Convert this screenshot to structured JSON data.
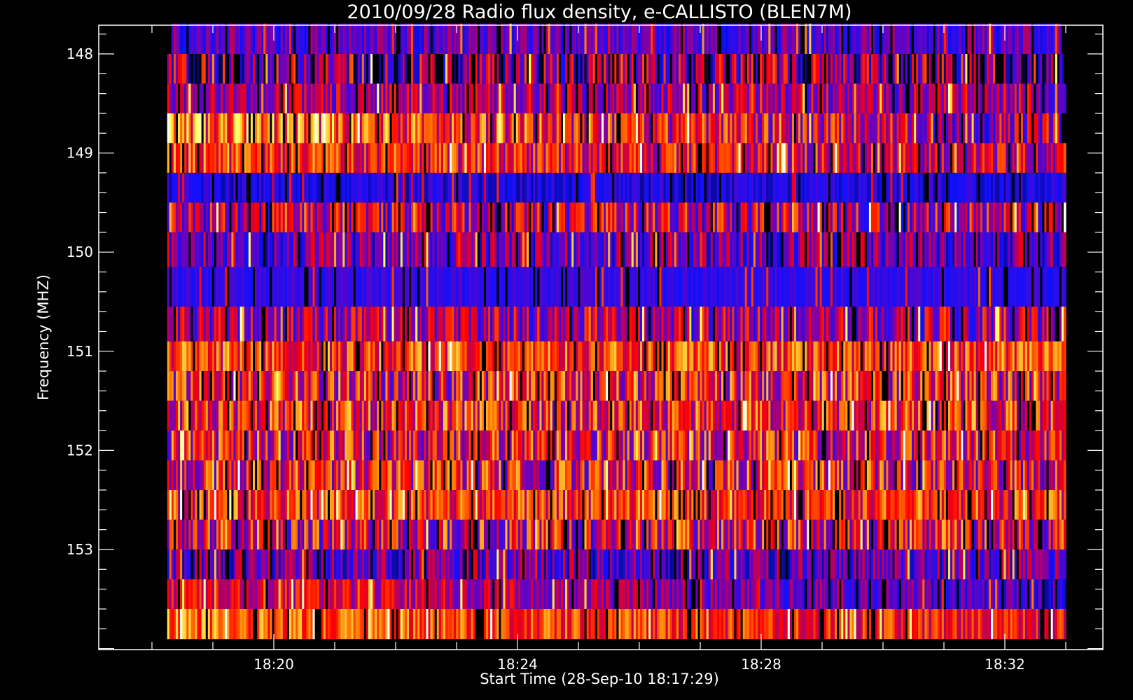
{
  "chart_data": {
    "type": "heatmap",
    "title": "2010/09/28  Radio flux density, e-CALLISTO (BLEN7M)",
    "xlabel": "Start Time (28-Sep-10 18:17:29)",
    "ylabel": "Frequency (MHZ)",
    "x_axis": {
      "unit": "time",
      "range": [
        "18:17:29",
        "18:34:00"
      ],
      "data_extent": [
        "18:18:15",
        "18:33:00"
      ],
      "major_ticks": [
        "18:20",
        "18:24",
        "18:28",
        "18:32"
      ],
      "minor_ticks_per_major": 4
    },
    "y_axis": {
      "unit": "MHz",
      "range": [
        147.7,
        154.1
      ],
      "inverted": true,
      "major_ticks": [
        148,
        149,
        150,
        151,
        152,
        153
      ],
      "minor_ticks_per_major": 5
    },
    "grid": false,
    "colormap": "blue-red-yellow-white",
    "colormap_stops": [
      "#000000",
      "#1010ff",
      "#7a00b0",
      "#ff0000",
      "#ff7a00",
      "#ffff60",
      "#ffffff"
    ],
    "channels": [
      {
        "freq": 147.85,
        "mean": 0.28,
        "var": 0.14,
        "start_col": 0.003,
        "end_col": 0.997
      },
      {
        "freq": 148.15,
        "mean": 0.26,
        "var": 0.35,
        "start_col": 0.0,
        "end_col": 1.0
      },
      {
        "freq": 148.45,
        "mean": 0.38,
        "var": 0.18,
        "start_col": 0.0,
        "end_col": 1.0
      },
      {
        "freq": 148.75,
        "mean": 0.55,
        "var": 0.25,
        "start_col": 0.0,
        "end_col": 1.0,
        "trend": -0.28
      },
      {
        "freq": 149.05,
        "mean": 0.52,
        "var": 0.2,
        "start_col": 0.0,
        "end_col": 1.0,
        "trend": -0.18
      },
      {
        "freq": 149.35,
        "mean": 0.18,
        "var": 0.08,
        "start_col": 0.0,
        "end_col": 1.0
      },
      {
        "freq": 149.65,
        "mean": 0.4,
        "var": 0.26,
        "start_col": 0.0,
        "end_col": 1.0
      },
      {
        "freq": 149.95,
        "mean": 0.3,
        "var": 0.2,
        "start_col": 0.0,
        "end_col": 1.0
      },
      {
        "freq": 150.35,
        "mean": 0.22,
        "var": 0.06,
        "start_col": 0.0,
        "end_col": 1.0
      },
      {
        "freq": 150.75,
        "mean": 0.38,
        "var": 0.22,
        "start_col": 0.0,
        "end_col": 1.0
      },
      {
        "freq": 151.05,
        "mean": 0.58,
        "var": 0.2,
        "start_col": 0.0,
        "end_col": 1.0
      },
      {
        "freq": 151.35,
        "mean": 0.5,
        "var": 0.26,
        "start_col": 0.0,
        "end_col": 1.0
      },
      {
        "freq": 151.65,
        "mean": 0.54,
        "var": 0.24,
        "start_col": 0.0,
        "end_col": 1.0
      },
      {
        "freq": 151.95,
        "mean": 0.5,
        "var": 0.26,
        "start_col": 0.0,
        "end_col": 1.0
      },
      {
        "freq": 152.25,
        "mean": 0.5,
        "var": 0.26,
        "start_col": 0.0,
        "end_col": 1.0
      },
      {
        "freq": 152.55,
        "mean": 0.56,
        "var": 0.2,
        "start_col": 0.0,
        "end_col": 1.0
      },
      {
        "freq": 152.85,
        "mean": 0.48,
        "var": 0.28,
        "start_col": 0.0,
        "end_col": 1.0
      },
      {
        "freq": 153.15,
        "mean": 0.28,
        "var": 0.2,
        "start_col": 0.0,
        "end_col": 1.0
      },
      {
        "freq": 153.45,
        "mean": 0.4,
        "var": 0.14,
        "start_col": 0.0,
        "end_col": 1.0,
        "trend": -0.28
      },
      {
        "freq": 153.75,
        "mean": 0.6,
        "var": 0.16,
        "start_col": 0.0,
        "end_col": 1.0,
        "trend": -0.14
      }
    ]
  }
}
